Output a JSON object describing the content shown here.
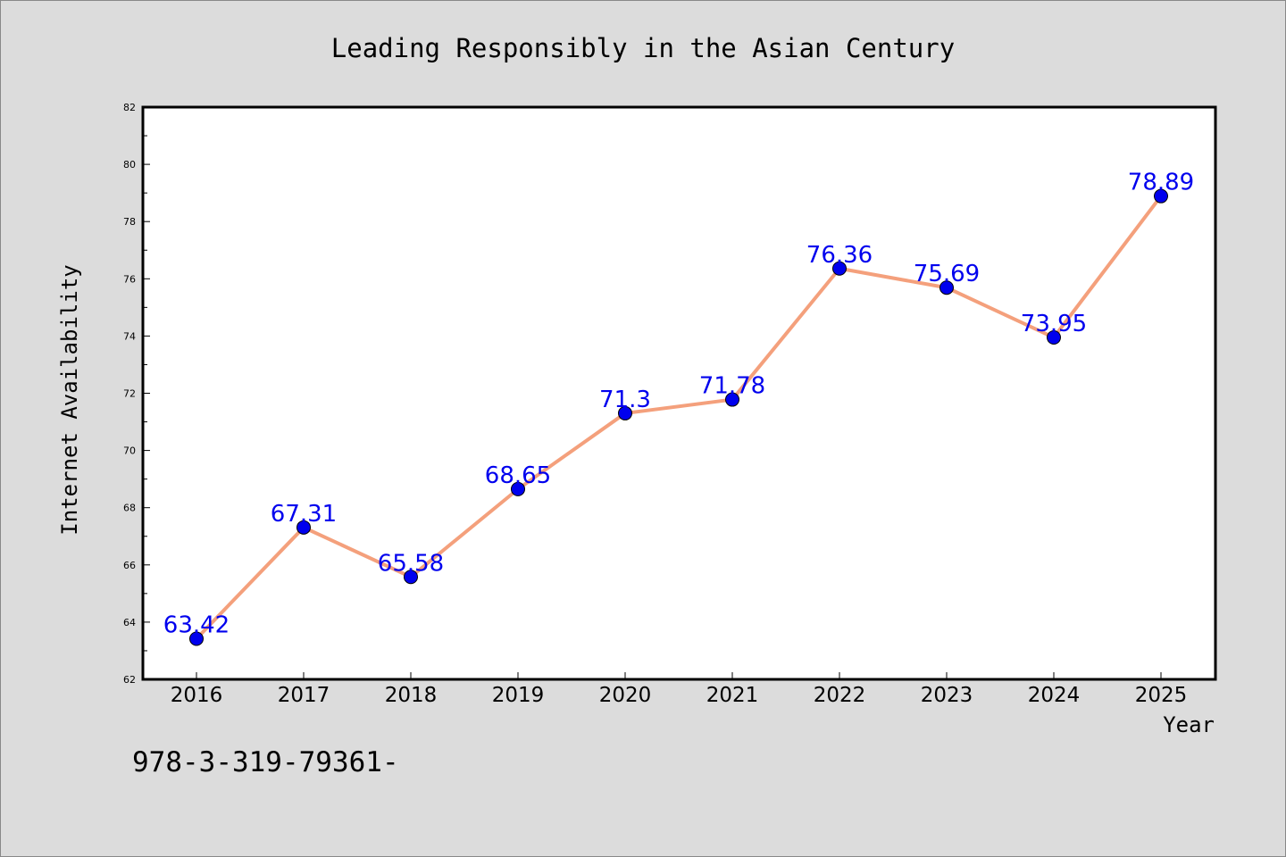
{
  "chart_data": {
    "type": "line",
    "title": "Leading Responsibly in the Asian Century",
    "xlabel": "Year",
    "ylabel": "Internet Availability",
    "categories": [
      "2016",
      "2017",
      "2018",
      "2019",
      "2020",
      "2021",
      "2022",
      "2023",
      "2024",
      "2025"
    ],
    "values": [
      63.42,
      67.31,
      65.58,
      68.65,
      71.3,
      71.78,
      76.36,
      75.69,
      73.95,
      78.89
    ],
    "data_labels": [
      "63.42",
      "67.31",
      "65.58",
      "68.65",
      "71.3",
      "71.78",
      "76.36",
      "75.69",
      "73.95",
      "78.89"
    ],
    "ylim": [
      62,
      82
    ],
    "yticks": [
      "62",
      "64",
      "66",
      "68",
      "70",
      "72",
      "74",
      "76",
      "78",
      "80",
      "82"
    ],
    "grid": false,
    "legend": "none",
    "colors": {
      "line": "#f4a07c",
      "marker": "#0000ee",
      "label": "#0000ee",
      "background": "#dcdcdc",
      "plot_background": "#ffffff"
    }
  },
  "footer": {
    "isbn": "978-3-319-79361-"
  }
}
